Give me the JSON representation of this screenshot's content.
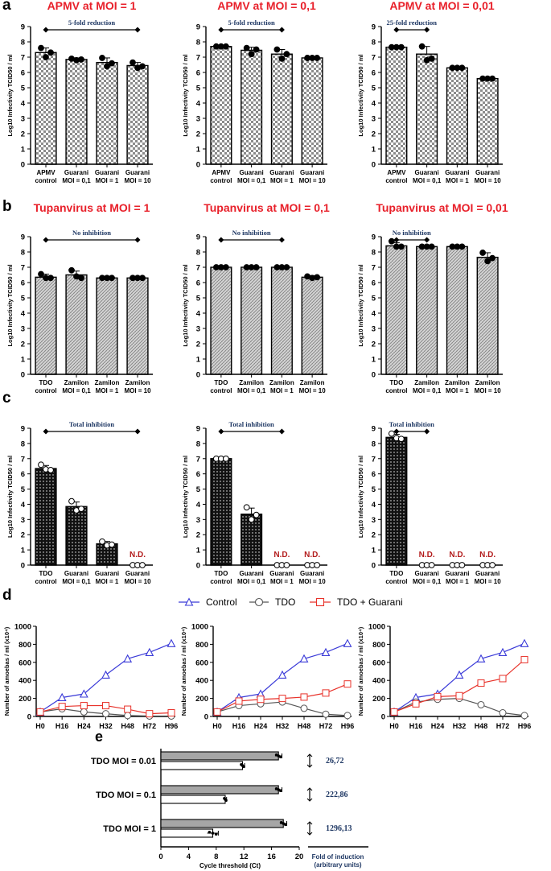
{
  "chart_data": [
    {
      "id": "a1",
      "panel": "a",
      "type": "bar",
      "title": "APMV at MOI = 1",
      "pattern": "checker",
      "ylabel": "Log10 Infectivity TCID50 / ml",
      "ylim": [
        0,
        9
      ],
      "yticks": [
        "0",
        "1",
        "2",
        "3",
        "4",
        "5",
        "6",
        "7",
        "8",
        "9"
      ],
      "categories": [
        [
          "APMV",
          "control"
        ],
        [
          "Guarani",
          "MOI = 0,1"
        ],
        [
          "Guarani",
          "MOI = 1"
        ],
        [
          "Guarani",
          "MOI = 10"
        ]
      ],
      "values": [
        7.3,
        6.85,
        6.65,
        6.45
      ],
      "errors": [
        0.3,
        0.1,
        0.3,
        0.2
      ],
      "points": [
        [
          7.6,
          7.0,
          7.3
        ],
        [
          6.9,
          6.8,
          6.85
        ],
        [
          6.95,
          6.4,
          6.6
        ],
        [
          6.65,
          6.3,
          6.4
        ]
      ],
      "annotation": {
        "text": "5-fold reduction",
        "from": 0,
        "to": 3
      },
      "nd": []
    },
    {
      "id": "a2",
      "panel": "a",
      "type": "bar",
      "title": "APMV at MOI = 0,1",
      "pattern": "checker",
      "ylabel": "Log10 Infectivity TCID50 / ml",
      "ylim": [
        0,
        9
      ],
      "yticks": [
        "0",
        "1",
        "2",
        "3",
        "4",
        "5",
        "6",
        "7",
        "8",
        "9"
      ],
      "categories": [
        [
          "APMV",
          "control"
        ],
        [
          "Guarani",
          "MOI = 0,1"
        ],
        [
          "Guarani",
          "MOI = 1"
        ],
        [
          "Guarani",
          "MOI = 10"
        ]
      ],
      "values": [
        7.7,
        7.45,
        7.2,
        6.95
      ],
      "errors": [
        0.05,
        0.2,
        0.3,
        0.02
      ],
      "points": [
        [
          7.7,
          7.7,
          7.7
        ],
        [
          7.6,
          7.2,
          7.5
        ],
        [
          7.5,
          6.9,
          7.2
        ],
        [
          6.95,
          6.95,
          6.95
        ]
      ],
      "annotation": {
        "text": "5-fold reduction",
        "from": 0,
        "to": 2
      },
      "nd": []
    },
    {
      "id": "a3",
      "panel": "a",
      "type": "bar",
      "title": "APMV at MOI = 0,01",
      "pattern": "checker",
      "ylabel": "Log10 Infectivity TCID50 / ml",
      "ylim": [
        0,
        9
      ],
      "yticks": [
        "0",
        "1",
        "2",
        "3",
        "4",
        "5",
        "6",
        "7",
        "8",
        "9"
      ],
      "categories": [
        [
          "APMV",
          "control"
        ],
        [
          "Guarani",
          "MOI = 0,1"
        ],
        [
          "Guarani",
          "MOI = 1"
        ],
        [
          "Guarani",
          "MOI = 10"
        ]
      ],
      "values": [
        7.65,
        7.2,
        6.3,
        5.6
      ],
      "errors": [
        0.05,
        0.5,
        0.02,
        0.02
      ],
      "points": [
        [
          7.65,
          7.65,
          7.65
        ],
        [
          7.7,
          6.8,
          6.9
        ],
        [
          6.3,
          6.3,
          6.3
        ],
        [
          5.6,
          5.6,
          5.6
        ]
      ],
      "annotation": {
        "text": "25-fold reduction",
        "from": 0,
        "to": 1
      },
      "nd": []
    },
    {
      "id": "b1",
      "panel": "b",
      "type": "bar",
      "title": "Tupanvirus at MOI = 1",
      "pattern": "hatch",
      "ylabel": "Log10 Infectivity TCID50 / ml",
      "ylim": [
        0,
        9
      ],
      "yticks": [
        "0",
        "1",
        "2",
        "3",
        "4",
        "5",
        "6",
        "7",
        "8",
        "9"
      ],
      "categories": [
        [
          "TDO",
          "control"
        ],
        [
          "Zamilon",
          "MOI = 0,1"
        ],
        [
          "Zamilon",
          "MOI = 1"
        ],
        [
          "Zamilon",
          "MOI = 10"
        ]
      ],
      "values": [
        6.35,
        6.5,
        6.3,
        6.3
      ],
      "errors": [
        0.2,
        0.25,
        0.02,
        0.02
      ],
      "points": [
        [
          6.55,
          6.3,
          6.3
        ],
        [
          6.8,
          6.4,
          6.3
        ],
        [
          6.3,
          6.3,
          6.3
        ],
        [
          6.3,
          6.3,
          6.3
        ]
      ],
      "annotation": {
        "text": "No inhibition",
        "from": 0,
        "to": 3
      },
      "nd": []
    },
    {
      "id": "b2",
      "panel": "b",
      "type": "bar",
      "title": "Tupanvirus at MOI = 0,1",
      "pattern": "hatch",
      "ylabel": "Log10 Infectivity TCID50 / ml",
      "ylim": [
        0,
        9
      ],
      "yticks": [
        "0",
        "1",
        "2",
        "3",
        "4",
        "5",
        "6",
        "7",
        "8",
        "9"
      ],
      "categories": [
        [
          "TDO",
          "control"
        ],
        [
          "Zamilon",
          "MOI = 0,1"
        ],
        [
          "Zamilon",
          "MOI = 1"
        ],
        [
          "Zamilon",
          "MOI = 10"
        ]
      ],
      "values": [
        7.0,
        7.0,
        7.0,
        6.35
      ],
      "errors": [
        0.02,
        0.02,
        0.02,
        0.1
      ],
      "points": [
        [
          7.0,
          7.0,
          7.0
        ],
        [
          7.0,
          7.0,
          7.0
        ],
        [
          7.0,
          7.0,
          7.0
        ],
        [
          6.4,
          6.3,
          6.35
        ]
      ],
      "annotation": {
        "text": "No inhibition",
        "from": 0,
        "to": 2
      },
      "nd": []
    },
    {
      "id": "b3",
      "panel": "b",
      "type": "bar",
      "title": "Tupanvirus at MOI = 0,01",
      "pattern": "hatch",
      "ylabel": "Log10 Infectivity TCID50 / ml",
      "ylim": [
        0,
        9
      ],
      "yticks": [
        "0",
        "1",
        "2",
        "3",
        "4",
        "5",
        "6",
        "7",
        "8",
        "9"
      ],
      "categories": [
        [
          "TDO",
          "control"
        ],
        [
          "Zamilon",
          "MOI = 0,1"
        ],
        [
          "Zamilon",
          "MOI = 1"
        ],
        [
          "Zamilon",
          "MOI = 10"
        ]
      ],
      "values": [
        8.4,
        8.35,
        8.35,
        7.65
      ],
      "errors": [
        0.2,
        0.02,
        0.02,
        0.3
      ],
      "points": [
        [
          8.7,
          8.35,
          8.35
        ],
        [
          8.35,
          8.35,
          8.35
        ],
        [
          8.35,
          8.35,
          8.35
        ],
        [
          7.95,
          7.4,
          7.6
        ]
      ],
      "annotation": {
        "text": "No inhibition",
        "from": 0,
        "to": 1
      },
      "nd": []
    },
    {
      "id": "c1",
      "panel": "c",
      "type": "bar",
      "title": "",
      "pattern": "dots",
      "ylabel": "Log10 Infectivity TCID50 / ml",
      "ylim": [
        0,
        9
      ],
      "yticks": [
        "0",
        "1",
        "2",
        "3",
        "4",
        "5",
        "6",
        "7",
        "8",
        "9"
      ],
      "categories": [
        [
          "TDO",
          "control"
        ],
        [
          "Guarani",
          "MOI = 0,1"
        ],
        [
          "Guarani",
          "MOI = 1"
        ],
        [
          "Guarani",
          "MOI = 10"
        ]
      ],
      "values": [
        6.35,
        3.85,
        1.4,
        0
      ],
      "errors": [
        0.2,
        0.3,
        0.15,
        0
      ],
      "points": [
        [
          6.6,
          6.3,
          6.25
        ],
        [
          4.2,
          3.6,
          3.7
        ],
        [
          1.55,
          1.3,
          1.35
        ],
        [
          0,
          0,
          0
        ]
      ],
      "annotation": {
        "text": "Total inhibition",
        "from": 0,
        "to": 3
      },
      "nd": [
        3
      ],
      "nd_label": "N.D."
    },
    {
      "id": "c2",
      "panel": "c",
      "type": "bar",
      "title": "",
      "pattern": "dots",
      "ylabel": "Log10 Infectivity TCID50 / ml",
      "ylim": [
        0,
        9
      ],
      "yticks": [
        "0",
        "1",
        "2",
        "3",
        "4",
        "5",
        "6",
        "7",
        "8",
        "9"
      ],
      "categories": [
        [
          "TDO",
          "control"
        ],
        [
          "Guarani",
          "MOI = 0,1"
        ],
        [
          "Guarani",
          "MOI = 1"
        ],
        [
          "Guarani",
          "MOI = 10"
        ]
      ],
      "values": [
        7.0,
        3.35,
        0,
        0
      ],
      "errors": [
        0.02,
        0.4,
        0,
        0
      ],
      "points": [
        [
          7.0,
          7.0,
          7.0
        ],
        [
          3.8,
          3.0,
          3.3
        ],
        [
          0,
          0,
          0
        ],
        [
          0,
          0,
          0
        ]
      ],
      "annotation": {
        "text": "Total inhibition",
        "from": 0,
        "to": 2
      },
      "nd": [
        2,
        3
      ],
      "nd_label": "N.D."
    },
    {
      "id": "c3",
      "panel": "c",
      "type": "bar",
      "title": "",
      "pattern": "dots",
      "ylabel": "Log10 Infectivity TCID50 / ml",
      "ylim": [
        0,
        9
      ],
      "yticks": [
        "0",
        "1",
        "2",
        "3",
        "4",
        "5",
        "6",
        "7",
        "8",
        "9"
      ],
      "categories": [
        [
          "TDO",
          "control"
        ],
        [
          "Guarani",
          "MOI = 0,1"
        ],
        [
          "Guarani",
          "MOI = 1"
        ],
        [
          "Guarani",
          "MOI = 10"
        ]
      ],
      "values": [
        8.4,
        0,
        0,
        0
      ],
      "errors": [
        0.2,
        0,
        0,
        0
      ],
      "points": [
        [
          8.65,
          8.35,
          8.3
        ],
        [
          0,
          0,
          0
        ],
        [
          0,
          0,
          0
        ],
        [
          0,
          0,
          0
        ]
      ],
      "annotation": {
        "text": "Total inhibition",
        "from": 0,
        "to": 1
      },
      "nd": [
        1,
        2,
        3
      ],
      "nd_label": "N.D."
    },
    {
      "id": "d1",
      "panel": "d",
      "type": "line",
      "ylabel": "Number of amoebas / ml (x10⁴)",
      "ylim": [
        0,
        1000
      ],
      "yticks": [
        "0",
        "200",
        "400",
        "600",
        "800",
        "1000"
      ],
      "categories": [
        "H0",
        "H16",
        "H24",
        "H32",
        "H48",
        "H72",
        "H96"
      ],
      "series": [
        {
          "name": "Control",
          "values": [
            50,
            210,
            250,
            460,
            640,
            710,
            810
          ]
        },
        {
          "name": "TDO",
          "values": [
            50,
            85,
            50,
            30,
            10,
            5,
            5
          ]
        },
        {
          "name": "TDO + Guarani",
          "values": [
            50,
            110,
            120,
            120,
            80,
            30,
            40
          ]
        }
      ]
    },
    {
      "id": "d2",
      "panel": "d",
      "type": "line",
      "ylabel": "Number of amoebas / ml (x10⁴)",
      "ylim": [
        0,
        1000
      ],
      "yticks": [
        "0",
        "200",
        "400",
        "600",
        "800",
        "1000"
      ],
      "categories": [
        "H0",
        "H16",
        "H24",
        "H32",
        "H48",
        "H72",
        "H96"
      ],
      "series": [
        {
          "name": "Control",
          "values": [
            50,
            210,
            250,
            460,
            640,
            710,
            810
          ]
        },
        {
          "name": "TDO",
          "values": [
            50,
            120,
            140,
            160,
            90,
            25,
            10
          ]
        },
        {
          "name": "TDO + Guarani",
          "values": [
            50,
            170,
            190,
            200,
            215,
            260,
            360
          ]
        }
      ]
    },
    {
      "id": "d3",
      "panel": "d",
      "type": "line",
      "ylabel": "Number of amoebas / ml (x10⁴)",
      "ylim": [
        0,
        1000
      ],
      "yticks": [
        "0",
        "200",
        "400",
        "600",
        "800",
        "1000"
      ],
      "categories": [
        "H0",
        "H16",
        "H24",
        "H32",
        "H48",
        "H72",
        "H96"
      ],
      "series": [
        {
          "name": "Control",
          "values": [
            50,
            210,
            250,
            460,
            640,
            710,
            810
          ]
        },
        {
          "name": "TDO",
          "values": [
            50,
            160,
            190,
            200,
            130,
            40,
            10
          ]
        },
        {
          "name": "TDO + Guarani",
          "values": [
            50,
            140,
            220,
            230,
            370,
            420,
            630
          ]
        }
      ]
    },
    {
      "id": "e",
      "panel": "e",
      "type": "bar",
      "orientation": "horizontal",
      "xlabel": "Cycle threshold (Ct)",
      "xlim": [
        0,
        20
      ],
      "xticks": [
        "0",
        "4",
        "8",
        "12",
        "16",
        "20"
      ],
      "groups": [
        {
          "label": "TDO MOI = 0.01",
          "gray": 17.0,
          "white": 11.8,
          "gray_err": 0.5,
          "white_err": 0.3,
          "fold": "26,72"
        },
        {
          "label": "TDO MOI = 0.1",
          "gray": 17.0,
          "white": 9.3,
          "gray_err": 0.5,
          "white_err": 0.2,
          "fold": "222,86"
        },
        {
          "label": "TDO MOI = 1",
          "gray": 17.7,
          "white": 7.5,
          "gray_err": 0.5,
          "white_err": 0.8,
          "fold": "1296,13"
        }
      ],
      "fold_label": [
        "Fold of induction",
        "(arbitrary units)"
      ]
    }
  ],
  "panel_labels": {
    "a": "a",
    "b": "b",
    "c": "c",
    "d": "d",
    "e": "e"
  },
  "legend": {
    "control": "Control",
    "tdo": "TDO",
    "tdo_guarani": "TDO + Guarani"
  },
  "colors": {
    "title": "#e8202a",
    "nd": "#b31d1d",
    "annotation": "#1f3864",
    "control": "#3b3bd8",
    "tdo": "#555555",
    "tdo_guarani": "#e8322a",
    "fold": "#1f3864",
    "bar_gray": "#a6a6a6"
  }
}
